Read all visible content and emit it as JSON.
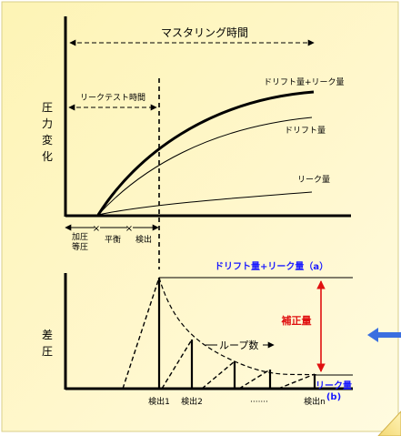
{
  "upper": {
    "mastering_time": "マスタリング時間",
    "leak_test_time": "リークテスト時間",
    "y_label": [
      "圧",
      "力",
      "変",
      "化"
    ],
    "curve_labels": {
      "total": "ドリフト量+リーク量",
      "drift": "ドリフト量",
      "leak": "リーク量"
    },
    "phases": {
      "pressurize_1": "加圧",
      "pressurize_2": "等圧",
      "balance": "平衡",
      "detect": "検出"
    }
  },
  "lower": {
    "y_label": [
      "差",
      "圧"
    ],
    "total_label": "ドリフト量+リーク量（a）",
    "correction_label": "補正量",
    "loop_label": "ループ数",
    "leak_label": "リーク量",
    "leak_sub": "(b)",
    "ticks": {
      "d1": "検出1",
      "d2": "検出2",
      "dots": "·······",
      "dn": "検出n"
    }
  },
  "colors": {
    "blue_label": "#1a1aff",
    "red_label": "#e01010",
    "arrow_blue": "#3a6fe0",
    "panel": "#fdf6c0",
    "panel_border": "#cfc88a"
  }
}
